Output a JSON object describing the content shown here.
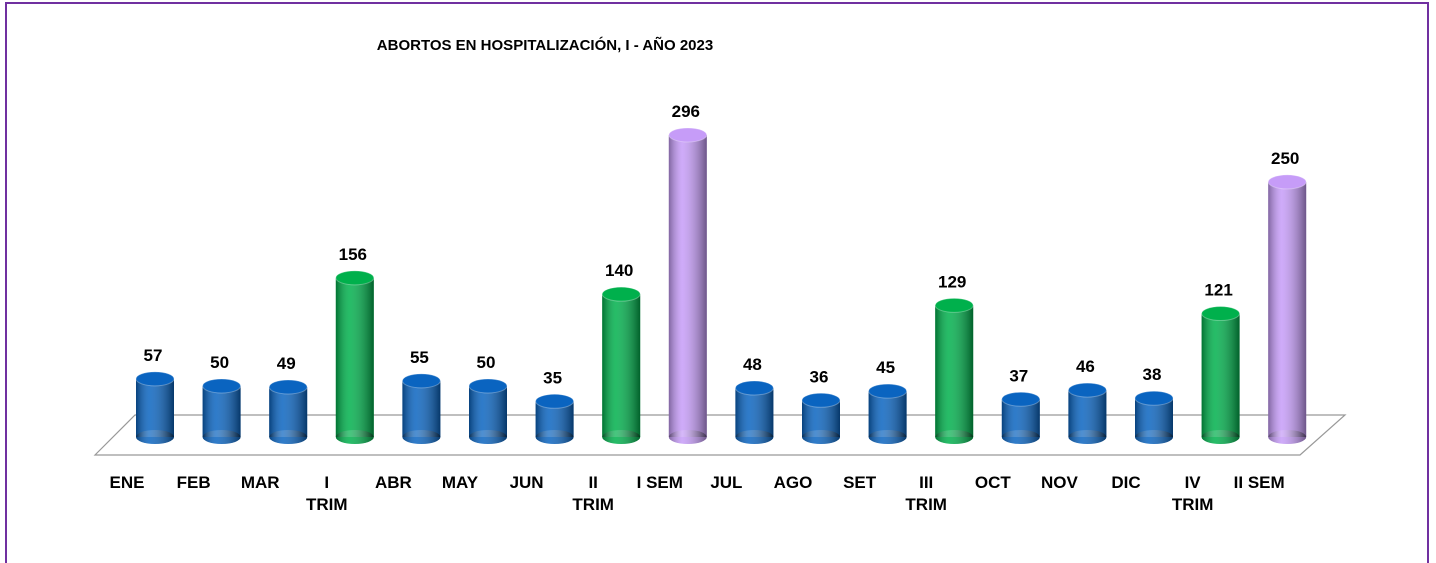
{
  "chart_data": {
    "type": "cylinder-bar",
    "title": "ABORTOS EN HOSPITALIZACIÓN,  I - AÑO 2023",
    "categories": [
      "ENE",
      "FEB",
      "MAR",
      "I\nTRIM",
      "ABR",
      "MAY",
      "JUN",
      "II\nTRIM",
      "I SEM",
      "JUL",
      "AGO",
      "SET",
      "III\nTRIM",
      "OCT",
      "NOV",
      "DIC",
      "IV\nTRIM",
      "II SEM"
    ],
    "values": [
      57,
      50,
      49,
      156,
      55,
      50,
      35,
      140,
      296,
      48,
      36,
      45,
      129,
      37,
      46,
      38,
      121,
      250
    ],
    "colors": [
      "#0a64c0",
      "#0a64c0",
      "#0a64c0",
      "#00b04c",
      "#0a64c0",
      "#0a64c0",
      "#0a64c0",
      "#00b04c",
      "#c69cf8",
      "#0a64c0",
      "#0a64c0",
      "#0a64c0",
      "#00b04c",
      "#0a64c0",
      "#0a64c0",
      "#0a64c0",
      "#00b04c",
      "#c69cf8"
    ]
  }
}
